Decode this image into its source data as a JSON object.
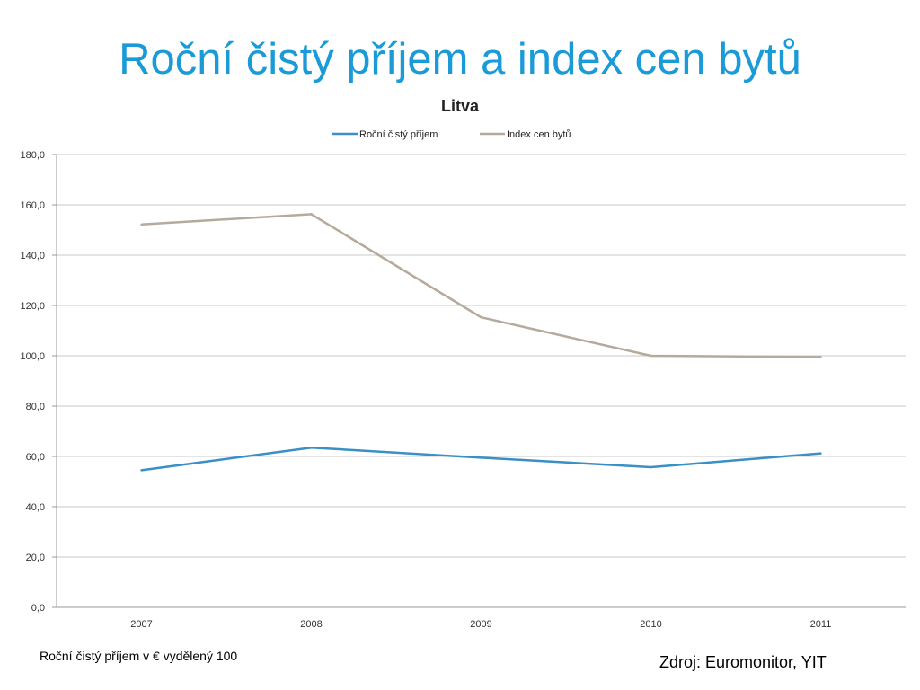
{
  "slide": {
    "title": "Roční čistý příjem a index cen bytů",
    "footnote": "Roční čistý příjem v € vydělený 100",
    "source": "Zdroj: Euromonitor, YIT"
  },
  "colors": {
    "title": "#1a9bd7",
    "series_income": "#3a8fc7",
    "series_index": "#b5aa9b",
    "grid": "#c8c8c8"
  },
  "chart_data": {
    "type": "line",
    "title": "Litva",
    "xlabel": "",
    "ylabel": "",
    "categories": [
      "2007",
      "2008",
      "2009",
      "2010",
      "2011"
    ],
    "ylim": [
      0,
      180
    ],
    "yticks": [
      "0,0",
      "20,0",
      "40,0",
      "60,0",
      "80,0",
      "100,0",
      "120,0",
      "140,0",
      "160,0",
      "180,0"
    ],
    "grid": true,
    "legend_position": "top",
    "series": [
      {
        "name": "Roční čistý příjem",
        "color": "#3a8fc7",
        "values": [
          54.5,
          63.5,
          59.5,
          55.7,
          61.2
        ]
      },
      {
        "name": "Index cen bytů",
        "color": "#b5aa9b",
        "values": [
          152.2,
          156.3,
          115.3,
          100.0,
          99.5
        ]
      }
    ]
  }
}
